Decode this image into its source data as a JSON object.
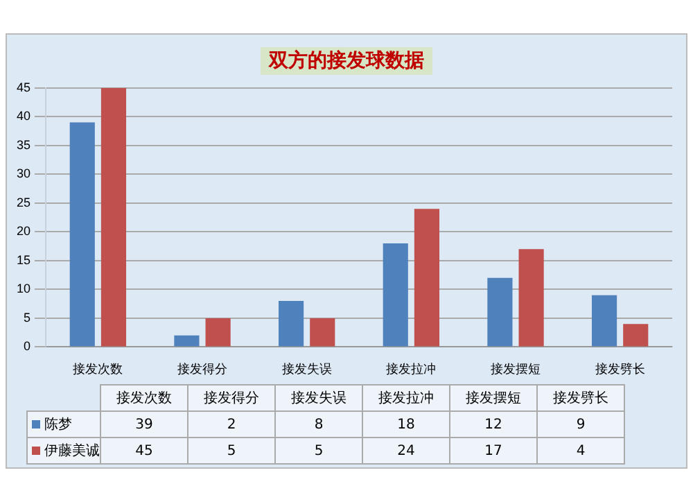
{
  "chart_data": {
    "type": "bar",
    "title": "双方的接发球数据",
    "categories": [
      "接发次数",
      "接发得分",
      "接发失误",
      "接发拉冲",
      "接发摆短",
      "接发劈长"
    ],
    "series": [
      {
        "name": "陈梦",
        "color": "#4f81bd",
        "values": [
          39,
          2,
          8,
          18,
          12,
          9
        ]
      },
      {
        "name": "伊藤美诚",
        "color": "#c0504d",
        "values": [
          45,
          5,
          5,
          24,
          17,
          4
        ]
      }
    ],
    "ylim": [
      0,
      45
    ],
    "yticks": [
      0,
      5,
      10,
      15,
      20,
      25,
      30,
      35,
      40,
      45
    ],
    "grid": "y",
    "legend": "bottom",
    "data_labels": true
  }
}
